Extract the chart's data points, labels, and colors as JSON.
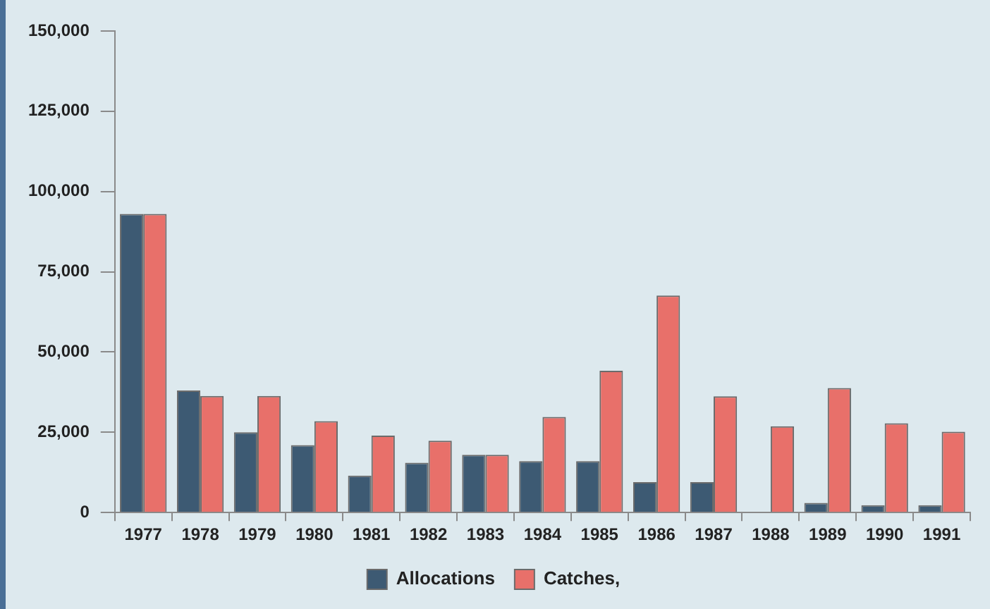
{
  "chart_data": {
    "type": "bar",
    "categories": [
      "1977",
      "1978",
      "1979",
      "1980",
      "1981",
      "1982",
      "1983",
      "1984",
      "1985",
      "1986",
      "1987",
      "1988",
      "1989",
      "1990",
      "1991"
    ],
    "series": [
      {
        "name": "Allocations",
        "color": "#3d5a73",
        "values": [
          93000,
          38000,
          25000,
          21000,
          11500,
          15500,
          18000,
          16000,
          16000,
          9500,
          9500,
          null,
          3000,
          2300,
          2300
        ]
      },
      {
        "name": "Catches,",
        "color": "#e8706a",
        "values": [
          93000,
          36300,
          36300,
          28500,
          24000,
          22400,
          18000,
          29800,
          44200,
          67600,
          36200,
          26900,
          38800,
          27800,
          25200
        ]
      }
    ],
    "ylim": [
      0,
      150000
    ],
    "yticks": [
      0,
      {
        "value": 25000,
        "label": "25,000"
      },
      {
        "value": 50000,
        "label": "50,000"
      },
      {
        "value": 75000,
        "label": "75,000"
      },
      {
        "value": 100000,
        "label": "100,000"
      },
      {
        "value": 125000,
        "label": "125,000"
      },
      {
        "value": 150000,
        "label": "150,000"
      }
    ],
    "grid": false,
    "legend": "bottom"
  }
}
